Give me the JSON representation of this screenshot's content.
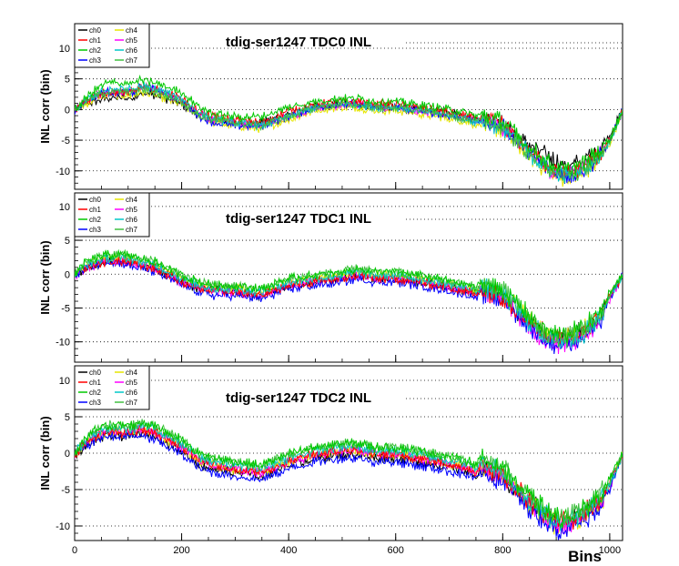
{
  "chart_data": [
    {
      "type": "line",
      "title": "tdig-ser1247 TDC0 INL",
      "ylabel": "INL corr (bin)",
      "xlabel": "",
      "xlim": [
        0,
        1024
      ],
      "ylim": [
        -13,
        14
      ],
      "xticks": [
        0,
        200,
        400,
        600,
        800,
        1000
      ],
      "yticks": [
        -10,
        -5,
        0,
        5,
        10
      ],
      "grid": "horizontal dotted",
      "legend": {
        "placement": "top-left",
        "columns": 2
      },
      "x": [
        0,
        20,
        40,
        60,
        80,
        100,
        115,
        120,
        150,
        200,
        235,
        260,
        300,
        350,
        365,
        400,
        450,
        500,
        530,
        560,
        600,
        640,
        680,
        740,
        750,
        760,
        800,
        840,
        880,
        900,
        920,
        950,
        980,
        1000,
        1024
      ],
      "series": [
        {
          "name": "ch0",
          "values": [
            0,
            1,
            1.5,
            2,
            2,
            2,
            2,
            3,
            2.5,
            1,
            -1,
            -1.5,
            -2,
            -2,
            -1.5,
            -0.5,
            0.5,
            1,
            1,
            0.5,
            0.5,
            0,
            0,
            -1,
            -1.5,
            -1,
            -2,
            -5,
            -7,
            -8,
            -9,
            -8,
            -6,
            -4,
            0
          ]
        },
        {
          "name": "ch1",
          "values": [
            0,
            1.5,
            2.5,
            3,
            3,
            3,
            3,
            4,
            3.5,
            2,
            -0.5,
            -1,
            -1.5,
            -2,
            -1.5,
            0,
            1,
            1.5,
            1.5,
            1,
            1,
            0.5,
            0,
            -1,
            -1.5,
            -1,
            -2,
            -5.5,
            -8.5,
            -9.5,
            -10,
            -9,
            -7,
            -5,
            0
          ]
        },
        {
          "name": "ch2",
          "values": [
            0,
            2,
            3.5,
            4.5,
            4.5,
            4.5,
            4.5,
            5,
            4.5,
            3,
            0.5,
            -0.5,
            -1,
            -1,
            -0.5,
            0.5,
            1.5,
            2,
            2,
            1.5,
            1.5,
            1,
            0.5,
            -0.5,
            -1,
            -0.5,
            -1.5,
            -5,
            -8,
            -9,
            -9.5,
            -8.5,
            -6.5,
            -4.5,
            0
          ]
        },
        {
          "name": "ch3",
          "values": [
            0,
            1.5,
            2.5,
            3,
            3,
            3,
            3,
            4,
            3.5,
            1.5,
            -1,
            -2,
            -2.5,
            -2.5,
            -2,
            -1,
            0.5,
            1,
            1,
            0.5,
            0.5,
            0,
            -0.5,
            -1.5,
            -2,
            -1.5,
            -2.5,
            -6,
            -9,
            -10,
            -10.5,
            -9.5,
            -7.5,
            -5,
            0
          ]
        },
        {
          "name": "ch4",
          "values": [
            0,
            1,
            2,
            2.5,
            2.5,
            2.5,
            2.5,
            3,
            2.5,
            1,
            -1,
            -2,
            -2.5,
            -3,
            -2.5,
            -1.5,
            0,
            0.5,
            0.5,
            0,
            0,
            -0.5,
            -1,
            -2,
            -2.5,
            -2,
            -3,
            -6.5,
            -9.5,
            -10.5,
            -11,
            -10,
            -8,
            -5.5,
            0
          ]
        },
        {
          "name": "ch5",
          "values": [
            0,
            1.5,
            2.5,
            3,
            3,
            3,
            3,
            4,
            3.5,
            1.5,
            -0.5,
            -1.5,
            -2,
            -2.5,
            -2,
            -1,
            0.5,
            1,
            1,
            0.5,
            0.5,
            0,
            -0.5,
            -1.5,
            -2,
            -1.5,
            -2.5,
            -6,
            -9,
            -10,
            -10,
            -9,
            -7,
            -5,
            0
          ]
        },
        {
          "name": "ch6",
          "values": [
            0,
            1.5,
            2.5,
            3.5,
            3.5,
            3.5,
            3.5,
            4,
            3.5,
            2,
            -0.5,
            -1.5,
            -2,
            -2.5,
            -2,
            -1,
            0.5,
            1,
            1,
            0.5,
            0.5,
            0,
            -0.5,
            -1.5,
            -2,
            -1.5,
            -2.5,
            -6,
            -9,
            -10,
            -10.5,
            -9.5,
            -7.5,
            -5,
            0
          ]
        },
        {
          "name": "ch7",
          "values": [
            0,
            1.5,
            2.5,
            3,
            3,
            3,
            3,
            3.5,
            3,
            1.5,
            -1,
            -1.5,
            -2,
            -2.5,
            -2,
            -1,
            0.5,
            1,
            1,
            0.5,
            0.5,
            0,
            -0.5,
            -1.5,
            -2,
            -1.5,
            -2.5,
            -6,
            -9,
            -10,
            -10.5,
            -9.5,
            -7.5,
            -5,
            0
          ]
        }
      ]
    },
    {
      "type": "line",
      "title": "tdig-ser1247 TDC1 INL",
      "ylabel": "INL corr (bin)",
      "xlabel": "",
      "xlim": [
        0,
        1024
      ],
      "ylim": [
        -13,
        12
      ],
      "xticks": [
        0,
        200,
        400,
        600,
        800,
        1000
      ],
      "yticks": [
        -10,
        -5,
        0,
        5,
        10
      ],
      "grid": "horizontal dotted",
      "legend": {
        "placement": "top-left",
        "columns": 2
      },
      "x": [
        0,
        20,
        40,
        60,
        80,
        100,
        120,
        150,
        200,
        235,
        260,
        300,
        350,
        365,
        400,
        450,
        500,
        530,
        560,
        600,
        640,
        680,
        740,
        750,
        760,
        800,
        840,
        880,
        900,
        920,
        950,
        980,
        1000,
        1024
      ],
      "series": [
        {
          "name": "ch0",
          "values": [
            0,
            1,
            1.5,
            2,
            2,
            2,
            1.5,
            1,
            -1,
            -2,
            -2,
            -2.5,
            -3,
            -2.5,
            -1.5,
            -1,
            -0.5,
            0,
            -0.5,
            -0.5,
            -1,
            -1.5,
            -2.5,
            -3,
            -2,
            -3,
            -6,
            -8.5,
            -9,
            -9,
            -8,
            -6,
            -3,
            0
          ]
        },
        {
          "name": "ch1",
          "values": [
            0,
            1,
            1.5,
            2,
            2,
            2,
            1.5,
            1,
            -1,
            -2,
            -2,
            -2.5,
            -3,
            -2.5,
            -1.5,
            -1,
            -0.5,
            0,
            -0.5,
            -0.5,
            -1,
            -1.5,
            -2.5,
            -3,
            -2,
            -3,
            -6,
            -8.5,
            -9,
            -9,
            -8,
            -6,
            -3,
            0
          ]
        },
        {
          "name": "ch2",
          "values": [
            0,
            2,
            2.5,
            3,
            3,
            3,
            2.5,
            2,
            0,
            -1,
            -1.5,
            -1.5,
            -2,
            -1.5,
            -0.5,
            0,
            0.5,
            1,
            0.5,
            0.5,
            0,
            -0.5,
            -1.5,
            -2,
            -1,
            -2,
            -5,
            -8,
            -8.5,
            -8.5,
            -7.5,
            -5.5,
            -2.5,
            0
          ]
        },
        {
          "name": "ch3",
          "values": [
            0,
            1,
            1.5,
            2,
            2,
            1.5,
            1,
            0.5,
            -1.5,
            -2.5,
            -3,
            -3,
            -3.5,
            -3,
            -2,
            -1.5,
            -1,
            -0.5,
            -1,
            -1,
            -1.5,
            -2,
            -3,
            -3.5,
            -2.5,
            -3.5,
            -6.5,
            -9.5,
            -10,
            -10,
            -9,
            -7,
            -3.5,
            0
          ]
        },
        {
          "name": "ch4",
          "values": [
            0,
            1.5,
            2,
            2.5,
            2.5,
            2.5,
            2,
            1.5,
            -0.5,
            -1.5,
            -2,
            -2,
            -2.5,
            -2,
            -1,
            -0.5,
            0,
            0.5,
            0,
            0,
            -0.5,
            -1,
            -2,
            -2.5,
            -1.5,
            -2.5,
            -5.5,
            -8.5,
            -9,
            -9,
            -8,
            -6,
            -3,
            0
          ]
        },
        {
          "name": "ch5",
          "values": [
            0,
            1,
            1.5,
            2,
            2,
            2,
            1.5,
            1,
            -1,
            -2,
            -2.5,
            -2.5,
            -3,
            -2.5,
            -1.5,
            -1,
            -0.5,
            0,
            -0.5,
            -0.5,
            -1,
            -1.5,
            -2.5,
            -3,
            -2,
            -3,
            -6.5,
            -9.5,
            -10,
            -10,
            -9,
            -7,
            -3.5,
            0
          ]
        },
        {
          "name": "ch6",
          "values": [
            0,
            1.5,
            2,
            2.5,
            2.5,
            2.5,
            2,
            1.5,
            -0.5,
            -1.5,
            -2,
            -2,
            -2.5,
            -2,
            -1,
            -0.5,
            0,
            0.5,
            0,
            0,
            -0.5,
            -1,
            -2,
            -2.5,
            -1.5,
            -2.5,
            -6,
            -9,
            -9.5,
            -9.5,
            -8.5,
            -6.5,
            -3,
            0
          ]
        },
        {
          "name": "ch7",
          "values": [
            0,
            2,
            2.5,
            3,
            3,
            3,
            2.5,
            2,
            0,
            -1,
            -1.5,
            -1.5,
            -2,
            -1.5,
            -0.5,
            0,
            0.5,
            1,
            0.5,
            0.5,
            0,
            -0.5,
            -1.5,
            -2,
            -1,
            -2,
            -5.5,
            -8.5,
            -9,
            -9,
            -8,
            -6,
            -3,
            0
          ]
        }
      ]
    },
    {
      "type": "line",
      "title": "tdig-ser1247 TDC2 INL",
      "ylabel": "INL corr (bin)",
      "xlabel": "Bins",
      "xlim": [
        0,
        1024
      ],
      "ylim": [
        -12,
        12
      ],
      "xticks": [
        0,
        200,
        400,
        600,
        800,
        1000
      ],
      "yticks": [
        -10,
        -5,
        0,
        5,
        10
      ],
      "grid": "horizontal dotted",
      "legend": {
        "placement": "top-left",
        "columns": 2
      },
      "x": [
        0,
        20,
        40,
        60,
        80,
        100,
        115,
        120,
        150,
        200,
        235,
        260,
        300,
        350,
        365,
        400,
        450,
        500,
        530,
        560,
        600,
        640,
        680,
        740,
        750,
        760,
        800,
        840,
        880,
        900,
        920,
        950,
        980,
        1000,
        1024
      ],
      "series": [
        {
          "name": "ch0",
          "values": [
            0,
            1,
            2,
            2.5,
            2.5,
            2.5,
            2.5,
            3,
            2.5,
            0.5,
            -1.5,
            -2,
            -2.5,
            -3,
            -2.5,
            -1.5,
            -0.5,
            0,
            0,
            -0.5,
            -0.5,
            -1,
            -1.5,
            -2.5,
            -3,
            -2,
            -3,
            -6,
            -8,
            -9,
            -9,
            -8,
            -6,
            -4,
            0
          ]
        },
        {
          "name": "ch1",
          "values": [
            0,
            1.5,
            2.5,
            3,
            3,
            3,
            3,
            3.5,
            3,
            1,
            -1,
            -1.5,
            -2,
            -2.5,
            -2,
            -1,
            0,
            0.5,
            0.5,
            0,
            0,
            -0.5,
            -1,
            -2,
            -2.5,
            -1.5,
            -2.5,
            -5.5,
            -8,
            -9,
            -9,
            -8,
            -6,
            -4,
            0
          ]
        },
        {
          "name": "ch2",
          "values": [
            0,
            2,
            3.5,
            4,
            4,
            4,
            4,
            4.5,
            4,
            2,
            0,
            -0.5,
            -1,
            -1.5,
            -1,
            0,
            1,
            1.5,
            1.5,
            1,
            1,
            0.5,
            0,
            -1,
            -1.5,
            -0.5,
            -1.5,
            -5,
            -7.5,
            -8.5,
            -8.5,
            -7.5,
            -5.5,
            -3.5,
            0
          ]
        },
        {
          "name": "ch3",
          "values": [
            0,
            1,
            2,
            2.5,
            2.5,
            2.5,
            2.5,
            2.5,
            2,
            0,
            -2,
            -2.5,
            -3,
            -3.5,
            -3,
            -2,
            -1,
            -0.5,
            -0.5,
            -1,
            -1,
            -1.5,
            -2,
            -3,
            -3.5,
            -2.5,
            -3.5,
            -6.5,
            -9,
            -10,
            -10,
            -9,
            -7,
            -5,
            0
          ]
        },
        {
          "name": "ch4",
          "values": [
            0,
            1.5,
            2.5,
            3,
            3,
            3,
            3,
            3.5,
            3,
            1,
            -1,
            -1.5,
            -2,
            -2.5,
            -2,
            -1,
            0,
            0.5,
            0.5,
            0,
            0,
            -0.5,
            -1,
            -2,
            -2.5,
            -1.5,
            -2.5,
            -6,
            -8.5,
            -9.5,
            -9.5,
            -8.5,
            -6.5,
            -4.5,
            0
          ]
        },
        {
          "name": "ch5",
          "values": [
            0,
            1.5,
            2.5,
            3,
            3,
            3,
            3,
            3.5,
            3,
            1,
            -1,
            -1.5,
            -2,
            -2.5,
            -2,
            -1,
            0,
            0.5,
            0.5,
            0,
            0,
            -0.5,
            -1,
            -2,
            -2.5,
            -1.5,
            -2.5,
            -6,
            -8.5,
            -9.5,
            -9.5,
            -8.5,
            -6.5,
            -4.5,
            0
          ]
        },
        {
          "name": "ch6",
          "values": [
            0,
            2,
            3,
            3.5,
            3.5,
            3.5,
            3.5,
            4,
            3.5,
            1.5,
            -0.5,
            -1,
            -1.5,
            -2,
            -1.5,
            -0.5,
            0.5,
            1,
            1,
            0.5,
            0.5,
            0,
            -0.5,
            -1.5,
            -2,
            -1,
            -2,
            -5.5,
            -8,
            -9,
            -9,
            -8,
            -6,
            -4,
            0
          ]
        },
        {
          "name": "ch7",
          "values": [
            0,
            2,
            3.5,
            4,
            4,
            4,
            4,
            4.5,
            4,
            2,
            0,
            -0.5,
            -1,
            -1.5,
            -1,
            0,
            1,
            1.5,
            1.5,
            1,
            1,
            0.5,
            0,
            -1,
            -1.5,
            -0.5,
            -1.5,
            -5,
            -7.5,
            -8.5,
            -8.5,
            -7.5,
            -5.5,
            -3.5,
            0
          ]
        }
      ]
    }
  ],
  "legend_colors": {
    "ch0": "#000000",
    "ch1": "#ff0000",
    "ch2": "#00c800",
    "ch3": "#0000ff",
    "ch4": "#e6e600",
    "ch5": "#ff00ff",
    "ch6": "#00c8c8",
    "ch7": "#40c040"
  }
}
